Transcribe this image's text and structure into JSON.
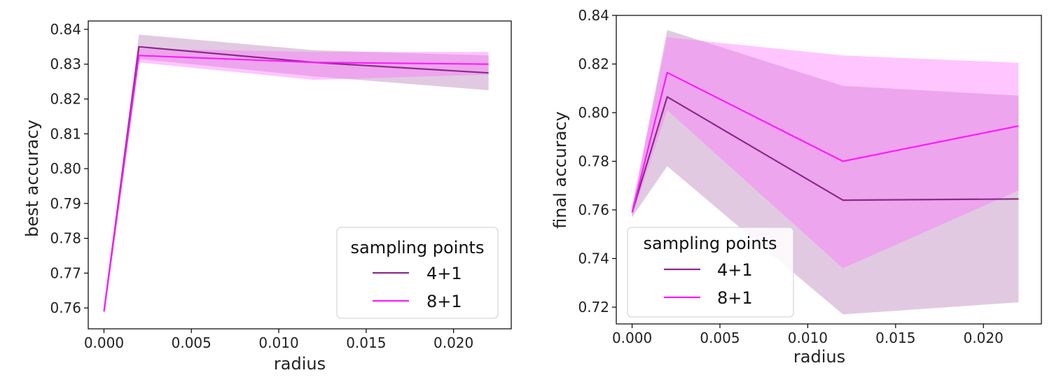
{
  "chart_data": [
    {
      "type": "line",
      "xlabel": "radius",
      "ylabel": "best accuracy",
      "xlim": [
        -0.0009,
        0.0233
      ],
      "ylim": [
        0.754,
        0.8424
      ],
      "xticks": [
        0.0,
        0.005,
        0.01,
        0.015,
        0.02
      ],
      "xtick_labels": [
        "0.000",
        "0.005",
        "0.010",
        "0.015",
        "0.020"
      ],
      "yticks": [
        0.76,
        0.77,
        0.78,
        0.79,
        0.8,
        0.81,
        0.82,
        0.83,
        0.84
      ],
      "ytick_labels": [
        "0.76",
        "0.77",
        "0.78",
        "0.79",
        "0.80",
        "0.81",
        "0.82",
        "0.83",
        "0.84"
      ],
      "x": [
        0.0,
        0.002,
        0.012,
        0.022
      ],
      "legend": {
        "title": "sampling points",
        "position": "lower-right"
      },
      "series": [
        {
          "name": "4+1",
          "color": "#8b2a8b",
          "band_color": "#b57ab5",
          "values": [
            0.759,
            0.835,
            0.8305,
            0.8275
          ],
          "lower": [
            0.7583,
            0.8315,
            0.8265,
            0.8225
          ],
          "upper": [
            0.7597,
            0.8385,
            0.834,
            0.8325
          ]
        },
        {
          "name": "8+1",
          "color": "#ff1aff",
          "band_color": "#ff6fff",
          "values": [
            0.759,
            0.8325,
            0.8305,
            0.83
          ],
          "lower": [
            0.7583,
            0.8305,
            0.8255,
            0.827
          ],
          "upper": [
            0.7597,
            0.8345,
            0.8335,
            0.8335
          ]
        }
      ]
    },
    {
      "type": "line",
      "xlabel": "radius",
      "ylabel": "final accuracy",
      "xlim": [
        -0.0009,
        0.0233
      ],
      "ylim": [
        0.7131,
        0.84
      ],
      "xticks": [
        0.0,
        0.005,
        0.01,
        0.015,
        0.02
      ],
      "xtick_labels": [
        "0.000",
        "0.005",
        "0.010",
        "0.015",
        "0.020"
      ],
      "yticks": [
        0.72,
        0.74,
        0.76,
        0.78,
        0.8,
        0.82,
        0.84
      ],
      "ytick_labels": [
        "0.72",
        "0.74",
        "0.76",
        "0.78",
        "0.80",
        "0.82",
        "0.84"
      ],
      "x": [
        0.0,
        0.002,
        0.012,
        0.022
      ],
      "legend": {
        "title": "sampling points",
        "position": "lower-left"
      },
      "series": [
        {
          "name": "4+1",
          "color": "#8b2a8b",
          "band_color": "#b57ab5",
          "values": [
            0.759,
            0.8065,
            0.764,
            0.7645
          ],
          "lower": [
            0.757,
            0.778,
            0.717,
            0.722
          ],
          "upper": [
            0.761,
            0.834,
            0.811,
            0.807
          ]
        },
        {
          "name": "8+1",
          "color": "#ff1aff",
          "band_color": "#ff6fff",
          "values": [
            0.759,
            0.8165,
            0.78,
            0.7945
          ],
          "lower": [
            0.757,
            0.801,
            0.736,
            0.768
          ],
          "upper": [
            0.761,
            0.831,
            0.8235,
            0.8205
          ]
        }
      ]
    }
  ]
}
